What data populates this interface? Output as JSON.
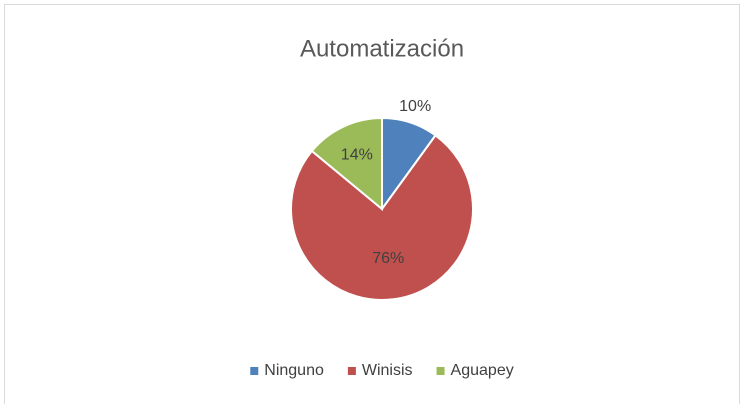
{
  "chart_data": {
    "type": "pie",
    "title": "Automatización",
    "categories": [
      "Ninguno",
      "Winisis",
      "Aguapey"
    ],
    "values": [
      10,
      76,
      14
    ],
    "value_labels": [
      "10%",
      "76%",
      "14%"
    ],
    "colors": [
      "#4f81bd",
      "#c0504d",
      "#9bbb59"
    ],
    "legend": "bottom"
  }
}
